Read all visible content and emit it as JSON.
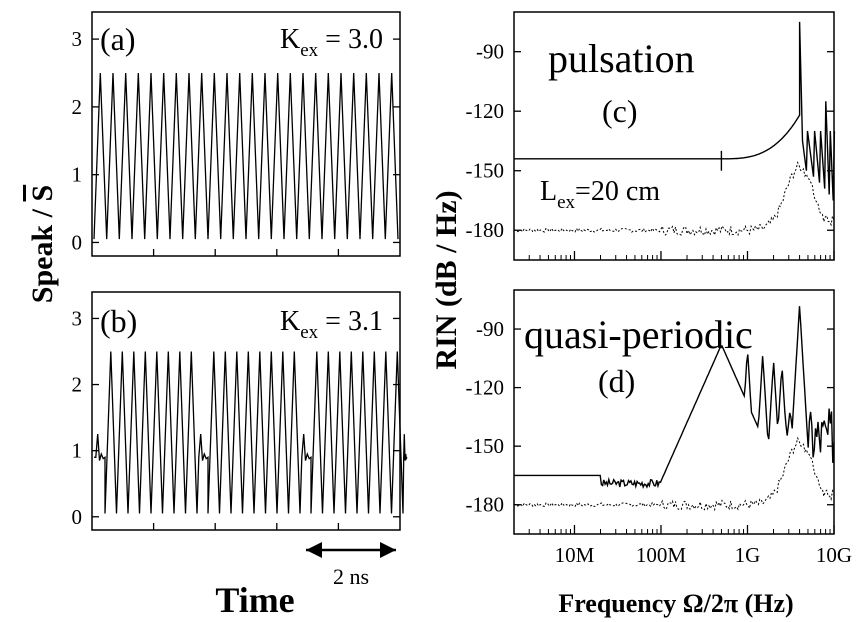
{
  "chart_data": [
    {
      "panel": "(a)",
      "type": "line",
      "annotation_k": "K",
      "annotation_k_sub": "ex",
      "annotation_k_value": " = 3.0",
      "xlabel": "Time",
      "ylabel_main": "Speak / ",
      "ylabel_s": "S",
      "yticks": [
        "0",
        "1",
        "2",
        "3"
      ],
      "ylim": [
        -0.2,
        3.4
      ],
      "regime": "periodic pulsation",
      "series": [
        {
          "pulse_peak": 2.5,
          "pulse_min": 0.05,
          "pulse_count": 24
        }
      ]
    },
    {
      "panel": "(b)",
      "type": "line",
      "annotation_k": "K",
      "annotation_k_sub": "ex",
      "annotation_k_value": " = 3.1",
      "yticks": [
        "0",
        "1",
        "2",
        "3"
      ],
      "ylim": [
        -0.2,
        3.4
      ],
      "scale_bar_label": "2 ns",
      "regime": "pulse bursts of 8 separated by relaxation (~0.9)",
      "series": [
        {
          "pulse_peak": 2.5,
          "pulse_min": 0.05,
          "bursts": 3,
          "pulses_per_burst": 8,
          "baseline": 0.9
        }
      ]
    },
    {
      "panel": "(c)",
      "type": "line",
      "title": "pulsation",
      "annotation_l": "L",
      "annotation_l_sub": "ex",
      "annotation_l_value": "=20 cm",
      "yticks": [
        "-90",
        "-120",
        "-150",
        "-180"
      ],
      "ylim": [
        -195,
        -70
      ],
      "xscale": "log",
      "xlim_hz": [
        2000000,
        10000000000
      ],
      "series": [
        {
          "style": "solid",
          "baseline_db": -144,
          "peak_hz": 4000000000,
          "peak_db": -75
        },
        {
          "style": "dotted",
          "baseline_db": -180,
          "peak_hz": 4000000000,
          "peak_db": -148
        }
      ]
    },
    {
      "panel": "(d)",
      "type": "line",
      "title": "quasi-periodic",
      "ylabel_main": "RIN  (dB / Hz)",
      "xlabel_main": "Frequency Ω/2π (Hz)",
      "xticks": [
        "10M",
        "100M",
        "1G",
        "10G"
      ],
      "yticks": [
        "-90",
        "-120",
        "-150",
        "-180"
      ],
      "ylim": [
        -195,
        -70
      ],
      "xscale": "log",
      "xlim_hz": [
        2000000,
        10000000000
      ],
      "series": [
        {
          "style": "solid",
          "baseline_db": -165,
          "spike_hz": [
            500000000,
            1000000000,
            1500000000,
            2000000000,
            2500000000,
            4000000000
          ],
          "spike_db": [
            -98,
            -100,
            -103,
            -106,
            -108,
            -78
          ]
        },
        {
          "style": "dotted",
          "baseline_db": -180,
          "peak_hz": 4000000000,
          "peak_db": -148
        }
      ]
    }
  ]
}
